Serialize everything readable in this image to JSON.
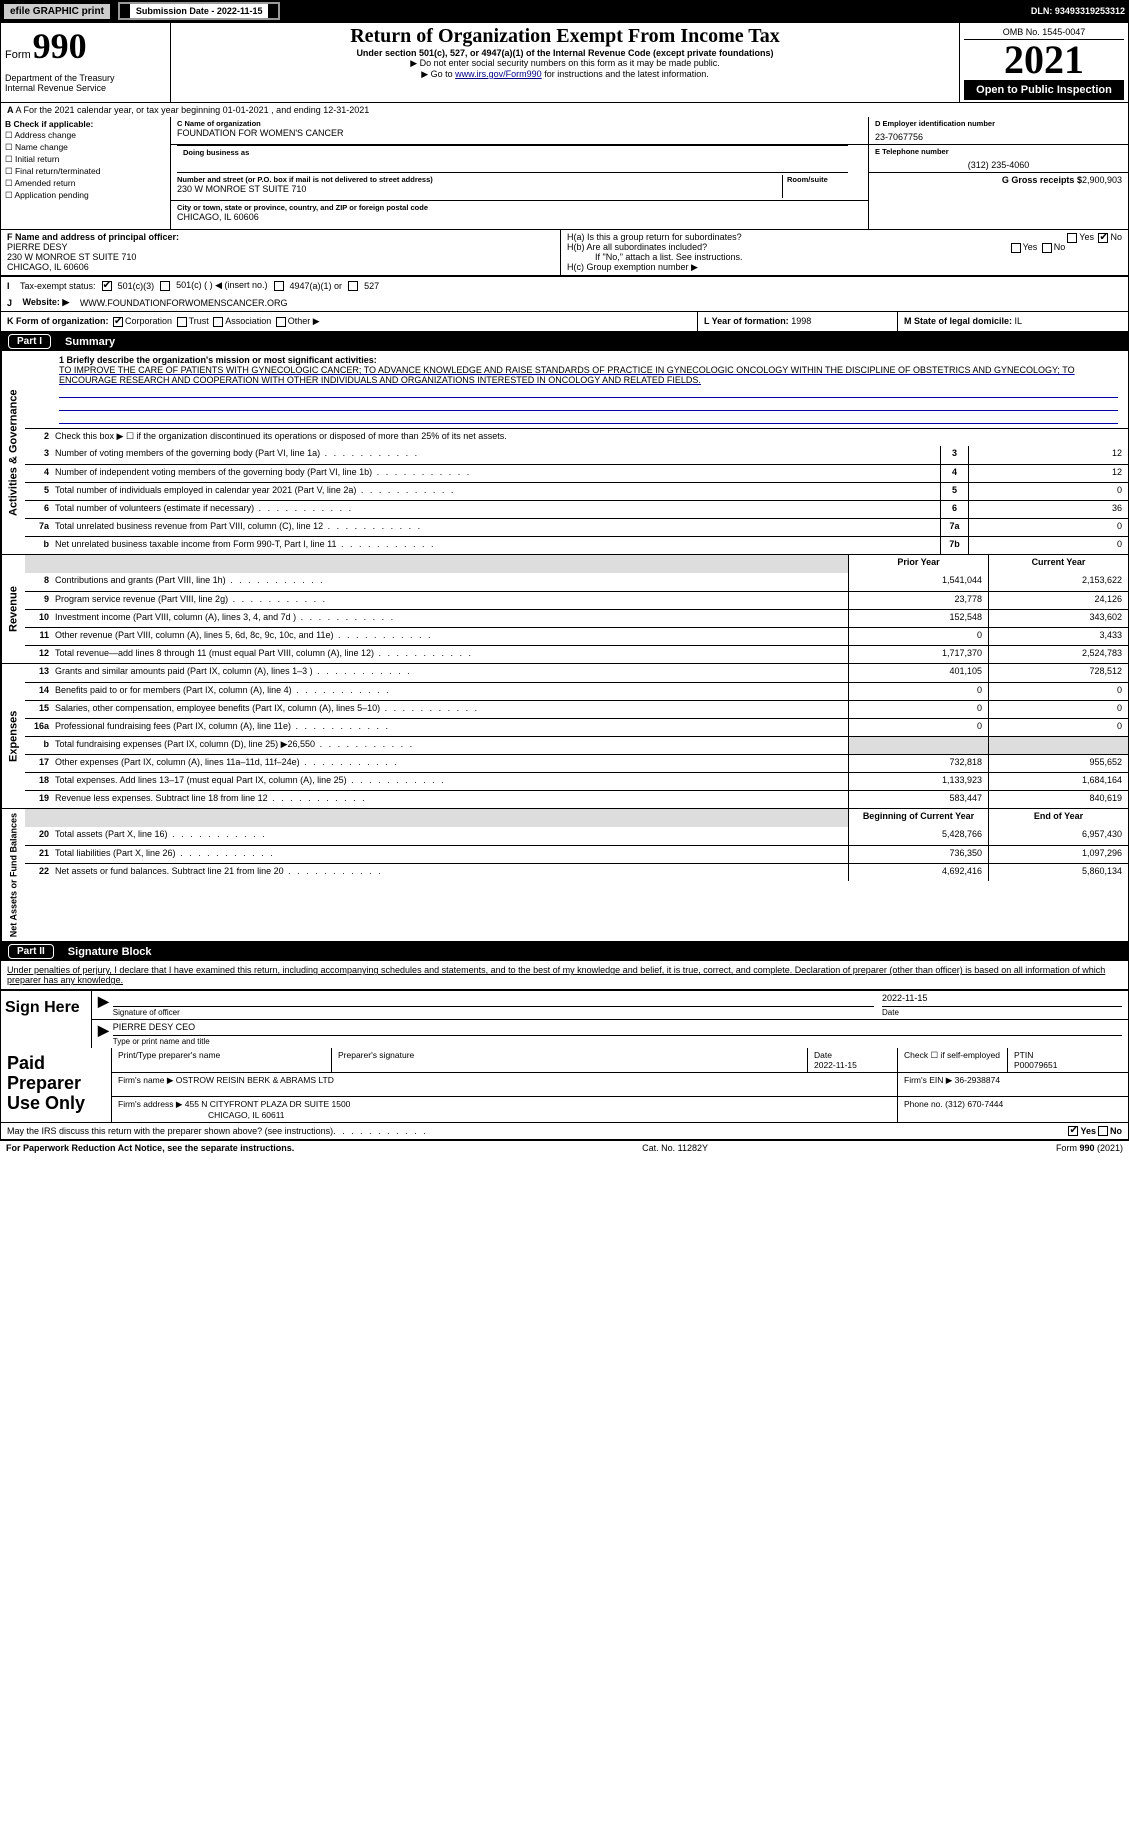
{
  "topbar": {
    "efile": "efile GRAPHIC print",
    "sub_label": "Submission Date - 2022-11-15",
    "dln": "DLN: 93493319253312"
  },
  "header": {
    "form": "Form",
    "num": "990",
    "dept": "Department of the Treasury\nInternal Revenue Service",
    "title": "Return of Organization Exempt From Income Tax",
    "sub": "Under section 501(c), 527, or 4947(a)(1) of the Internal Revenue Code (except private foundations)",
    "note1": "▶ Do not enter social security numbers on this form as it may be made public.",
    "note2_a": "▶ Go to ",
    "note2_link": "www.irs.gov/Form990",
    "note2_b": " for instructions and the latest information.",
    "omb": "OMB No. 1545-0047",
    "year": "2021",
    "open": "Open to Public Inspection"
  },
  "a_row": "A For the 2021 calendar year, or tax year beginning 01-01-2021     , and ending 12-31-2021",
  "b": {
    "label": "B Check if applicable:",
    "items": [
      "Address change",
      "Name change",
      "Initial return",
      "Final return/terminated",
      "Amended return",
      "Application pending"
    ]
  },
  "c": {
    "name_lbl": "C Name of organization",
    "name": "FOUNDATION FOR WOMEN'S CANCER",
    "dba_lbl": "Doing business as",
    "addr_lbl": "Number and street (or P.O. box if mail is not delivered to street address)",
    "room_lbl": "Room/suite",
    "addr": "230 W MONROE ST SUITE 710",
    "city_lbl": "City or town, state or province, country, and ZIP or foreign postal code",
    "city": "CHICAGO, IL  60606"
  },
  "d": {
    "ein_lbl": "D Employer identification number",
    "ein": "23-7067756",
    "phone_lbl": "E Telephone number",
    "phone": "(312) 235-4060",
    "gross_lbl": "G Gross receipts $",
    "gross": "2,900,903"
  },
  "f": {
    "lbl": "F Name and address of principal officer:",
    "name": "PIERRE DESY",
    "addr": "230 W MONROE ST SUITE 710",
    "city": "CHICAGO, IL  60606"
  },
  "h": {
    "a": "H(a)  Is this a group return for subordinates?",
    "b": "H(b)  Are all subordinates included?",
    "b2": "If \"No,\" attach a list. See instructions.",
    "c": "H(c)  Group exemption number ▶"
  },
  "i": {
    "lbl": "Tax-exempt status:",
    "opts": [
      "501(c)(3)",
      "501(c) (   ) ◀ (insert no.)",
      "4947(a)(1) or",
      "527"
    ]
  },
  "j": {
    "lbl": "Website: ▶",
    "val": "WWW.FOUNDATIONFORWOMENSCANCER.ORG"
  },
  "k": {
    "lbl": "K Form of organization:",
    "opts": [
      "Corporation",
      "Trust",
      "Association",
      "Other ▶"
    ]
  },
  "l": {
    "lbl": "L Year of formation:",
    "val": "1998"
  },
  "m": {
    "lbl": "M State of legal domicile:",
    "val": "IL"
  },
  "parts": {
    "p1": "Part I",
    "p1t": "Summary",
    "p2": "Part II",
    "p2t": "Signature Block"
  },
  "summary": {
    "l1_lbl": "1  Briefly describe the organization's mission or most significant activities:",
    "l1_txt": "TO IMPROVE THE CARE OF PATIENTS WITH GYNECOLOGIC CANCER; TO ADVANCE KNOWLEDGE AND RAISE STANDARDS OF PRACTICE IN GYNECOLOGIC ONCOLOGY WITHIN THE DISCIPLINE OF OBSTETRICS AND GYNECOLOGY; TO ENCOURAGE RESEARCH AND COOPERATION WITH OTHER INDIVIDUALS AND ORGANIZATIONS INTERESTED IN ONCOLOGY AND RELATED FIELDS.",
    "l2": "Check this box ▶ ☐  if the organization discontinued its operations or disposed of more than 25% of its net assets.",
    "side_ag": "Activities & Governance",
    "side_rev": "Revenue",
    "side_exp": "Expenses",
    "side_na": "Net Assets or Fund Balances",
    "rows_single": [
      {
        "n": "3",
        "d": "Number of voting members of the governing body (Part VI, line 1a)",
        "b": "3",
        "v": "12"
      },
      {
        "n": "4",
        "d": "Number of independent voting members of the governing body (Part VI, line 1b)",
        "b": "4",
        "v": "12"
      },
      {
        "n": "5",
        "d": "Total number of individuals employed in calendar year 2021 (Part V, line 2a)",
        "b": "5",
        "v": "0"
      },
      {
        "n": "6",
        "d": "Total number of volunteers (estimate if necessary)",
        "b": "6",
        "v": "36"
      },
      {
        "n": "7a",
        "d": "Total unrelated business revenue from Part VIII, column (C), line 12",
        "b": "7a",
        "v": "0"
      },
      {
        "n": "b",
        "d": "Net unrelated business taxable income from Form 990-T, Part I, line 11",
        "b": "7b",
        "v": "0"
      }
    ],
    "hdr_prior": "Prior Year",
    "hdr_curr": "Current Year",
    "hdr_beg": "Beginning of Current Year",
    "hdr_end": "End of Year",
    "rows_rev": [
      {
        "n": "8",
        "d": "Contributions and grants (Part VIII, line 1h)",
        "p": "1,541,044",
        "c": "2,153,622"
      },
      {
        "n": "9",
        "d": "Program service revenue (Part VIII, line 2g)",
        "p": "23,778",
        "c": "24,126"
      },
      {
        "n": "10",
        "d": "Investment income (Part VIII, column (A), lines 3, 4, and 7d )",
        "p": "152,548",
        "c": "343,602"
      },
      {
        "n": "11",
        "d": "Other revenue (Part VIII, column (A), lines 5, 6d, 8c, 9c, 10c, and 11e)",
        "p": "0",
        "c": "3,433"
      },
      {
        "n": "12",
        "d": "Total revenue—add lines 8 through 11 (must equal Part VIII, column (A), line 12)",
        "p": "1,717,370",
        "c": "2,524,783"
      }
    ],
    "rows_exp": [
      {
        "n": "13",
        "d": "Grants and similar amounts paid (Part IX, column (A), lines 1–3 )",
        "p": "401,105",
        "c": "728,512"
      },
      {
        "n": "14",
        "d": "Benefits paid to or for members (Part IX, column (A), line 4)",
        "p": "0",
        "c": "0"
      },
      {
        "n": "15",
        "d": "Salaries, other compensation, employee benefits (Part IX, column (A), lines 5–10)",
        "p": "0",
        "c": "0"
      },
      {
        "n": "16a",
        "d": "Professional fundraising fees (Part IX, column (A), line 11e)",
        "p": "0",
        "c": "0"
      },
      {
        "n": "b",
        "d": "Total fundraising expenses (Part IX, column (D), line 25) ▶26,550",
        "p": "",
        "c": "",
        "grey": true
      },
      {
        "n": "17",
        "d": "Other expenses (Part IX, column (A), lines 11a–11d, 11f–24e)",
        "p": "732,818",
        "c": "955,652"
      },
      {
        "n": "18",
        "d": "Total expenses. Add lines 13–17 (must equal Part IX, column (A), line 25)",
        "p": "1,133,923",
        "c": "1,684,164"
      },
      {
        "n": "19",
        "d": "Revenue less expenses. Subtract line 18 from line 12",
        "p": "583,447",
        "c": "840,619"
      }
    ],
    "rows_na": [
      {
        "n": "20",
        "d": "Total assets (Part X, line 16)",
        "p": "5,428,766",
        "c": "6,957,430"
      },
      {
        "n": "21",
        "d": "Total liabilities (Part X, line 26)",
        "p": "736,350",
        "c": "1,097,296"
      },
      {
        "n": "22",
        "d": "Net assets or fund balances. Subtract line 21 from line 20",
        "p": "4,692,416",
        "c": "5,860,134"
      }
    ]
  },
  "sig": {
    "decl": "Under penalties of perjury, I declare that I have examined this return, including accompanying schedules and statements, and to the best of my knowledge and belief, it is true, correct, and complete. Declaration of preparer (other than officer) is based on all information of which preparer has any knowledge.",
    "sign_here": "Sign Here",
    "sig_off": "Signature of officer",
    "date": "Date",
    "sig_date": "2022-11-15",
    "name": "PIERRE DESY CEO",
    "name_lbl": "Type or print name and title",
    "paid": "Paid Preparer Use Only",
    "pt_name_lbl": "Print/Type preparer's name",
    "pt_sig_lbl": "Preparer's signature",
    "pt_date_lbl": "Date",
    "pt_date": "2022-11-15",
    "pt_check": "Check ☐ if self-employed",
    "ptin_lbl": "PTIN",
    "ptin": "P00079651",
    "firm_lbl": "Firm's name     ▶",
    "firm": "OSTROW REISIN BERK & ABRAMS LTD",
    "firm_ein_lbl": "Firm's EIN ▶",
    "firm_ein": "36-2938874",
    "firm_addr_lbl": "Firm's address ▶",
    "firm_addr": "455 N CITYFRONT PLAZA DR SUITE 1500",
    "firm_city": "CHICAGO, IL  60611",
    "firm_phone_lbl": "Phone no.",
    "firm_phone": "(312) 670-7444",
    "discuss": "May the IRS discuss this return with the preparer shown above? (see instructions)",
    "yes": "Yes",
    "no": "No"
  },
  "foot": {
    "left": "For Paperwork Reduction Act Notice, see the separate instructions.",
    "mid": "Cat. No. 11282Y",
    "right": "Form 990 (2021)"
  }
}
